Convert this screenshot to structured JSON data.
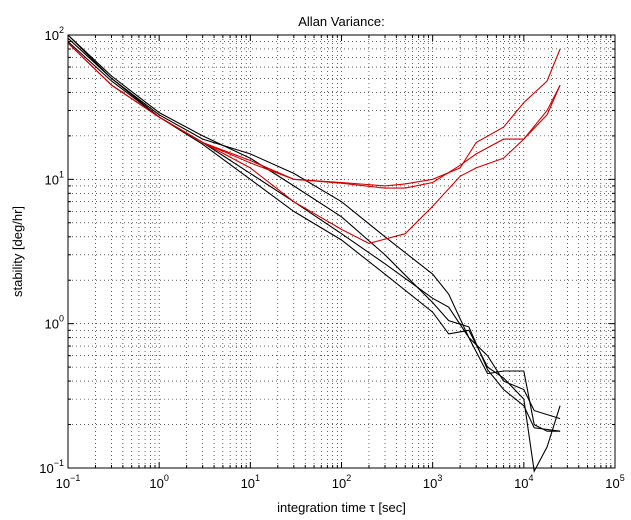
{
  "chart_data": {
    "type": "line",
    "title": "Allan Variance:",
    "xlabel": "integration time τ [sec]",
    "ylabel": "stability [deg/hr]",
    "xscale": "log",
    "yscale": "log",
    "xlim": [
      0.1,
      100000
    ],
    "ylim": [
      0.1,
      100
    ],
    "grid": true,
    "x_ticks": [
      {
        "base": "10",
        "exp": "−1",
        "value": 0.1
      },
      {
        "base": "10",
        "exp": "0",
        "value": 1
      },
      {
        "base": "10",
        "exp": "1",
        "value": 10
      },
      {
        "base": "10",
        "exp": "2",
        "value": 100
      },
      {
        "base": "10",
        "exp": "3",
        "value": 1000
      },
      {
        "base": "10",
        "exp": "4",
        "value": 10000
      },
      {
        "base": "10",
        "exp": "5",
        "value": 100000
      }
    ],
    "y_ticks": [
      {
        "base": "10",
        "exp": "−1",
        "value": 0.1
      },
      {
        "base": "10",
        "exp": "0",
        "value": 1
      },
      {
        "base": "10",
        "exp": "1",
        "value": 10
      },
      {
        "base": "10",
        "exp": "2",
        "value": 100
      }
    ],
    "series": [
      {
        "color": "#000000",
        "points": [
          [
            0.1,
            100
          ],
          [
            0.3,
            50
          ],
          [
            1,
            27
          ],
          [
            3,
            17.5
          ],
          [
            10,
            10
          ],
          [
            30,
            6
          ],
          [
            100,
            3.8
          ],
          [
            300,
            2.2
          ],
          [
            1000,
            1.2
          ],
          [
            1500,
            0.85
          ],
          [
            2500,
            0.9
          ],
          [
            4000,
            0.5
          ],
          [
            6000,
            0.42
          ],
          [
            10000,
            0.3
          ],
          [
            13000,
            0.095
          ],
          [
            18000,
            0.14
          ],
          [
            25000,
            0.27
          ]
        ]
      },
      {
        "color": "#000000",
        "points": [
          [
            0.1,
            100
          ],
          [
            0.3,
            52
          ],
          [
            1,
            29
          ],
          [
            3,
            20
          ],
          [
            10,
            14
          ],
          [
            30,
            9
          ],
          [
            100,
            5.5
          ],
          [
            300,
            3
          ],
          [
            1000,
            1.4
          ],
          [
            1500,
            1.05
          ],
          [
            2500,
            0.95
          ],
          [
            4000,
            0.48
          ],
          [
            6000,
            0.35
          ],
          [
            10000,
            0.27
          ],
          [
            13000,
            0.19
          ],
          [
            25000,
            0.18
          ]
        ]
      },
      {
        "color": "#000000",
        "points": [
          [
            0.1,
            90
          ],
          [
            0.3,
            48
          ],
          [
            1,
            27
          ],
          [
            3,
            18
          ],
          [
            10,
            11
          ],
          [
            30,
            7
          ],
          [
            100,
            4.2
          ],
          [
            300,
            2.6
          ],
          [
            1000,
            1.5
          ],
          [
            1500,
            1.3
          ],
          [
            2500,
            0.8
          ],
          [
            4000,
            0.45
          ],
          [
            6000,
            0.47
          ],
          [
            10000,
            0.47
          ],
          [
            13000,
            0.2
          ],
          [
            18000,
            0.18
          ],
          [
            25000,
            0.18
          ]
        ]
      },
      {
        "color": "#000000",
        "points": [
          [
            0.1,
            95
          ],
          [
            0.3,
            50
          ],
          [
            1,
            28
          ],
          [
            3,
            19
          ],
          [
            10,
            15
          ],
          [
            30,
            11
          ],
          [
            100,
            7
          ],
          [
            300,
            4
          ],
          [
            1000,
            2.2
          ],
          [
            1500,
            1.6
          ],
          [
            2500,
            0.8
          ],
          [
            4000,
            0.6
          ],
          [
            6000,
            0.4
          ],
          [
            10000,
            0.35
          ],
          [
            13000,
            0.25
          ],
          [
            25000,
            0.22
          ]
        ]
      },
      {
        "color": "#d40000",
        "points": [
          [
            0.1,
            88
          ],
          [
            0.3,
            45
          ],
          [
            1,
            27
          ],
          [
            3,
            18
          ],
          [
            10,
            13.5
          ],
          [
            30,
            10
          ],
          [
            100,
            9.5
          ],
          [
            300,
            9
          ],
          [
            500,
            9.3
          ],
          [
            1000,
            10
          ],
          [
            2000,
            12
          ],
          [
            3000,
            18
          ],
          [
            6000,
            23
          ],
          [
            10000,
            34
          ],
          [
            18000,
            48
          ],
          [
            25000,
            80
          ]
        ]
      },
      {
        "color": "#d40000",
        "points": [
          [
            0.1,
            88
          ],
          [
            0.3,
            45
          ],
          [
            1,
            27
          ],
          [
            3,
            18
          ],
          [
            10,
            13
          ],
          [
            30,
            10
          ],
          [
            100,
            9.4
          ],
          [
            300,
            8.7
          ],
          [
            500,
            8.7
          ],
          [
            1000,
            9.5
          ],
          [
            2000,
            12.5
          ],
          [
            3000,
            15
          ],
          [
            6000,
            19
          ],
          [
            10000,
            19
          ],
          [
            18000,
            28
          ],
          [
            25000,
            45
          ]
        ]
      },
      {
        "color": "#d40000",
        "points": [
          [
            0.1,
            88
          ],
          [
            0.3,
            45
          ],
          [
            1,
            27
          ],
          [
            3,
            18
          ],
          [
            10,
            12
          ],
          [
            30,
            7
          ],
          [
            100,
            4.5
          ],
          [
            200,
            3.6
          ],
          [
            500,
            4.2
          ],
          [
            1000,
            6.5
          ],
          [
            2000,
            10.5
          ],
          [
            3000,
            12
          ],
          [
            6000,
            14
          ],
          [
            10000,
            19
          ],
          [
            18000,
            30
          ],
          [
            25000,
            45
          ]
        ]
      }
    ]
  }
}
